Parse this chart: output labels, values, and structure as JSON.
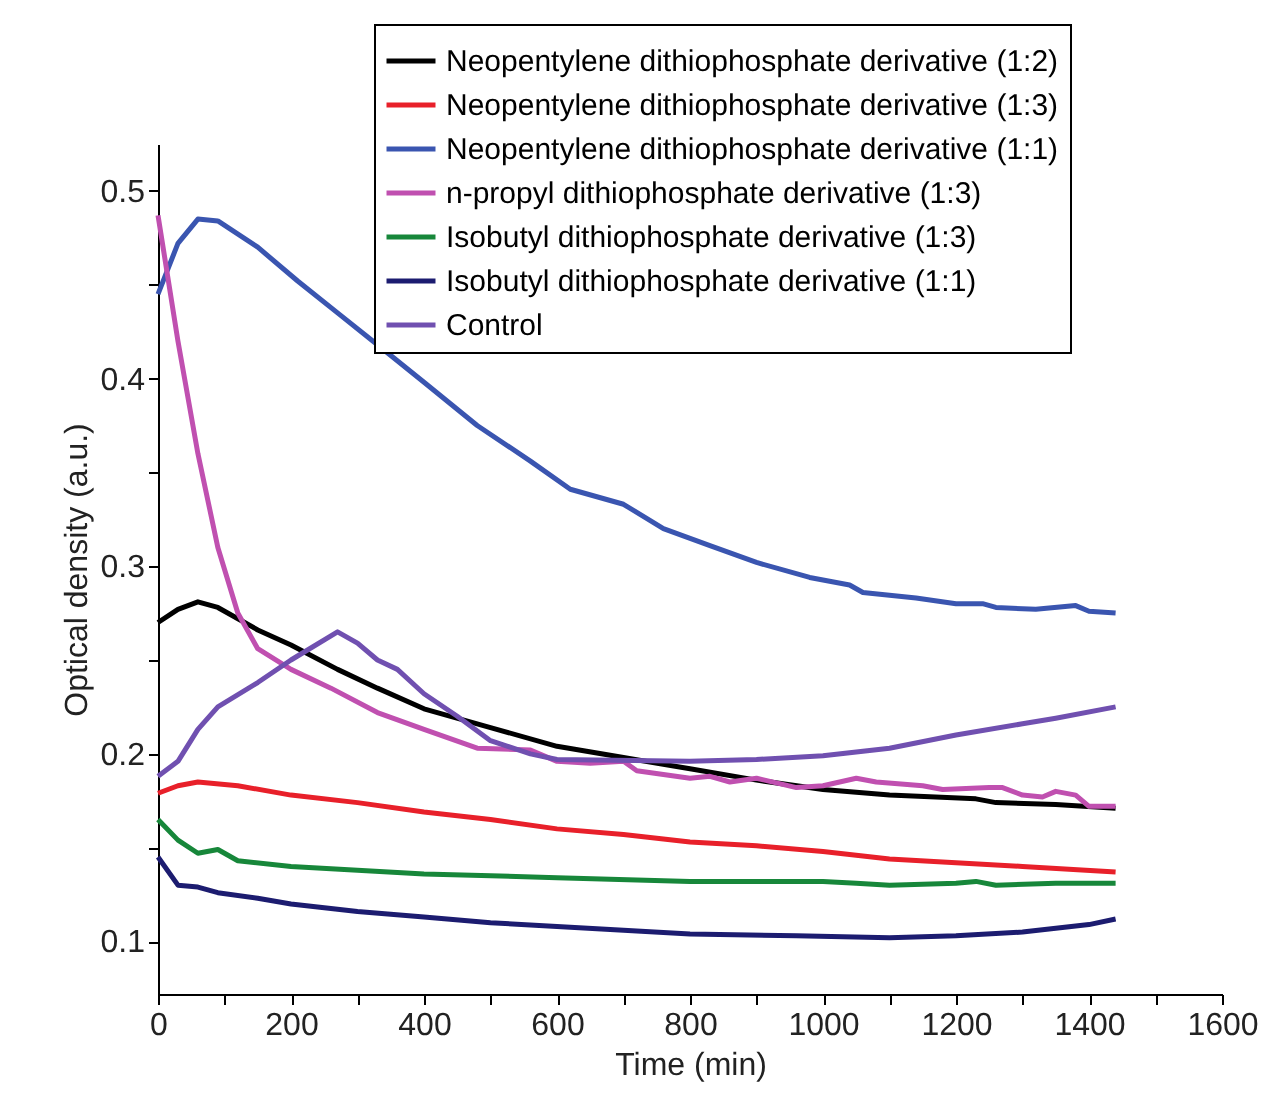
{
  "chart_data": {
    "type": "line",
    "xlabel": "Time (min)",
    "ylabel": "Optical density (a.u.)",
    "xlim": [
      0,
      1600
    ],
    "ylim": [
      0.072,
      0.525
    ],
    "xticks": [
      0,
      {
        "value": 100,
        "label": null
      },
      200,
      {
        "value": 300,
        "label": null
      },
      400,
      {
        "value": 500,
        "label": null
      },
      600,
      {
        "value": 700,
        "label": null
      },
      800,
      {
        "value": 900,
        "label": null
      },
      1000,
      {
        "value": 1100,
        "label": null
      },
      1200,
      {
        "value": 1300,
        "label": null
      },
      1400,
      {
        "value": 1500,
        "label": null
      },
      1600
    ],
    "yticks": [
      0.1,
      {
        "value": 0.15,
        "label": null
      },
      0.2,
      {
        "value": 0.25,
        "label": null
      },
      0.3,
      {
        "value": 0.35,
        "label": null
      },
      0.4,
      {
        "value": 0.45,
        "label": null
      },
      0.5
    ],
    "grid": false,
    "legend": "top right",
    "line_style": "solid",
    "marker": "none",
    "series": [
      {
        "name": "Neopentylene dithiophosphate derivative (1:2)",
        "color": "#000000",
        "x": [
          0,
          30,
          60,
          90,
          150,
          200,
          270,
          330,
          400,
          500,
          600,
          700,
          800,
          900,
          1000,
          1100,
          1230,
          1260,
          1350,
          1440
        ],
        "values": [
          0.27,
          0.277,
          0.281,
          0.278,
          0.266,
          0.258,
          0.245,
          0.235,
          0.224,
          0.214,
          0.204,
          0.198,
          0.192,
          0.186,
          0.181,
          0.178,
          0.176,
          0.174,
          0.173,
          0.171
        ]
      },
      {
        "name": "Neopentylene dithiophosphate derivative (1:3)",
        "color": "#e8202a",
        "x": [
          0,
          30,
          60,
          120,
          200,
          300,
          400,
          500,
          600,
          700,
          800,
          900,
          1000,
          1100,
          1200,
          1300,
          1440
        ],
        "values": [
          0.179,
          0.183,
          0.185,
          0.183,
          0.178,
          0.174,
          0.169,
          0.165,
          0.16,
          0.157,
          0.153,
          0.151,
          0.148,
          0.144,
          0.142,
          0.14,
          0.137
        ]
      },
      {
        "name": "Neopentylene dithiophosphate derivative (1:1)",
        "color": "#3a55b0",
        "x": [
          0,
          30,
          60,
          90,
          150,
          210,
          270,
          330,
          400,
          480,
          560,
          620,
          700,
          760,
          830,
          900,
          980,
          1040,
          1060,
          1140,
          1200,
          1240,
          1260,
          1320,
          1380,
          1400,
          1440
        ],
        "values": [
          0.445,
          0.472,
          0.485,
          0.484,
          0.47,
          0.452,
          0.435,
          0.418,
          0.398,
          0.375,
          0.356,
          0.341,
          0.333,
          0.32,
          0.311,
          0.302,
          0.294,
          0.29,
          0.286,
          0.283,
          0.28,
          0.28,
          0.278,
          0.277,
          0.279,
          0.276,
          0.275
        ]
      },
      {
        "name": "n-propyl dithiophosphate derivative (1:3)",
        "color": "#c050b0",
        "x": [
          0,
          30,
          60,
          90,
          120,
          150,
          200,
          260,
          330,
          400,
          480,
          560,
          600,
          650,
          700,
          720,
          800,
          830,
          860,
          900,
          960,
          1000,
          1050,
          1080,
          1150,
          1180,
          1250,
          1270,
          1300,
          1330,
          1350,
          1380,
          1400,
          1440
        ],
        "values": [
          0.487,
          0.42,
          0.36,
          0.31,
          0.275,
          0.256,
          0.245,
          0.235,
          0.222,
          0.213,
          0.203,
          0.202,
          0.196,
          0.195,
          0.196,
          0.191,
          0.187,
          0.188,
          0.185,
          0.187,
          0.182,
          0.183,
          0.187,
          0.185,
          0.183,
          0.181,
          0.182,
          0.182,
          0.178,
          0.177,
          0.18,
          0.178,
          0.172,
          0.172
        ]
      },
      {
        "name": "Isobutyl dithiophosphate derivative (1:3)",
        "color": "#17873a",
        "x": [
          0,
          30,
          60,
          90,
          120,
          200,
          300,
          400,
          600,
          800,
          1000,
          1050,
          1100,
          1200,
          1230,
          1260,
          1350,
          1440
        ],
        "values": [
          0.165,
          0.154,
          0.147,
          0.149,
          0.143,
          0.14,
          0.138,
          0.136,
          0.134,
          0.132,
          0.132,
          0.131,
          0.13,
          0.131,
          0.132,
          0.13,
          0.131,
          0.131
        ]
      },
      {
        "name": "Isobutyl dithiophosphate derivative (1:1)",
        "color": "#1c1c70",
        "x": [
          0,
          30,
          60,
          90,
          150,
          200,
          300,
          400,
          500,
          600,
          700,
          800,
          960,
          1100,
          1200,
          1300,
          1400,
          1440
        ],
        "values": [
          0.145,
          0.13,
          0.129,
          0.126,
          0.123,
          0.12,
          0.116,
          0.113,
          0.11,
          0.108,
          0.106,
          0.104,
          0.103,
          0.102,
          0.103,
          0.105,
          0.109,
          0.112
        ]
      },
      {
        "name": "Control",
        "color": "#7050b0",
        "x": [
          0,
          30,
          60,
          90,
          150,
          200,
          270,
          300,
          330,
          360,
          400,
          450,
          500,
          560,
          600,
          800,
          900,
          1000,
          1100,
          1200,
          1300,
          1350,
          1440
        ],
        "values": [
          0.188,
          0.196,
          0.213,
          0.225,
          0.238,
          0.25,
          0.265,
          0.259,
          0.25,
          0.245,
          0.232,
          0.22,
          0.207,
          0.2,
          0.197,
          0.196,
          0.197,
          0.199,
          0.203,
          0.21,
          0.216,
          0.219,
          0.225
        ]
      }
    ]
  }
}
